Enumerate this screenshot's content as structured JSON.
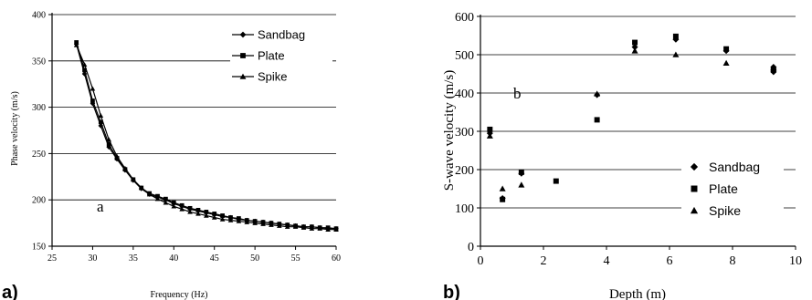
{
  "chart_data": [
    {
      "type": "line",
      "panel_label": "a)",
      "annotation": "a",
      "xlabel": "Frequency (Hz)",
      "ylabel": "Phase velocity (m/s)",
      "xlim": [
        25,
        60
      ],
      "ylim": [
        150,
        400
      ],
      "xticks": [
        "25",
        "30",
        "35",
        "40",
        "45",
        "50",
        "55",
        "60"
      ],
      "yticks": [
        "150",
        "200",
        "250",
        "300",
        "350",
        "400"
      ],
      "grid": "horizontal",
      "legend_position": "top-right",
      "series": [
        {
          "name": "Sandbag",
          "marker": "diamond",
          "x": [
            28,
            29,
            30,
            31,
            32,
            33,
            34,
            35,
            36,
            37,
            38,
            39,
            40,
            41,
            42,
            43,
            44,
            45,
            46,
            47,
            48,
            49,
            50,
            51,
            52,
            53,
            54,
            55,
            56,
            57,
            58,
            59,
            60
          ],
          "y": [
            368,
            336,
            304,
            280,
            257,
            244,
            232,
            221,
            212,
            206,
            203,
            200,
            196,
            193,
            190,
            188,
            186,
            184,
            182,
            181,
            179,
            178,
            177,
            176,
            175,
            174,
            173,
            172,
            171,
            171,
            170,
            169,
            169
          ]
        },
        {
          "name": "Plate",
          "marker": "square",
          "x": [
            28,
            29,
            30,
            31,
            32,
            33,
            34,
            35,
            36,
            37,
            38,
            39,
            40,
            41,
            42,
            43,
            44,
            45,
            46,
            47,
            48,
            49,
            50,
            51,
            52,
            53,
            54,
            55,
            56,
            57,
            58,
            59,
            60
          ],
          "y": [
            370,
            340,
            307,
            284,
            260,
            245,
            233,
            222,
            213,
            207,
            204,
            201,
            197,
            194,
            191,
            189,
            187,
            185,
            183,
            181,
            180,
            178,
            177,
            176,
            175,
            174,
            173,
            172,
            171,
            171,
            170,
            170,
            169
          ]
        },
        {
          "name": "Spike",
          "marker": "triangle",
          "x": [
            28,
            29,
            30,
            31,
            32,
            33,
            34,
            35,
            36,
            37,
            38,
            39,
            40,
            41,
            42,
            43,
            44,
            45,
            46,
            47,
            48,
            49,
            50,
            51,
            52,
            53,
            54,
            55,
            56,
            57,
            58,
            59,
            60
          ],
          "y": [
            367,
            346,
            320,
            291,
            265,
            247,
            234,
            222,
            213,
            206,
            201,
            197,
            193,
            190,
            187,
            185,
            183,
            181,
            179,
            178,
            177,
            176,
            175,
            174,
            173,
            172,
            171,
            171,
            170,
            169,
            169,
            168,
            168
          ]
        }
      ]
    },
    {
      "type": "scatter",
      "panel_label": "b)",
      "annotation": "b",
      "xlabel": "Depth (m)",
      "ylabel": "S-wave velocity (m/s)",
      "xlim": [
        0,
        10
      ],
      "ylim": [
        0,
        600
      ],
      "xticks": [
        "0",
        "2",
        "4",
        "6",
        "8",
        "10"
      ],
      "yticks": [
        "0",
        "100",
        "200",
        "300",
        "400",
        "500",
        "600"
      ],
      "grid": "horizontal",
      "legend_position": "bottom-right",
      "series": [
        {
          "name": "Sandbag",
          "marker": "diamond",
          "x": [
            0.3,
            0.7,
            1.3,
            3.7,
            4.9,
            6.2,
            7.8,
            9.3,
            9.3,
            9.3
          ],
          "y": [
            295,
            125,
            190,
            395,
            520,
            540,
            510,
            455,
            462,
            468
          ]
        },
        {
          "name": "Plate",
          "marker": "square",
          "x": [
            0.3,
            0.7,
            1.3,
            2.4,
            3.7,
            4.9,
            6.2,
            7.8,
            9.3
          ],
          "y": [
            305,
            122,
            193,
            170,
            330,
            532,
            548,
            515,
            460
          ]
        },
        {
          "name": "Spike",
          "marker": "triangle",
          "x": [
            0.3,
            0.7,
            1.3,
            3.7,
            4.9,
            6.2,
            7.8,
            9.3
          ],
          "y": [
            288,
            150,
            160,
            398,
            510,
            500,
            478,
            465
          ]
        }
      ]
    }
  ]
}
